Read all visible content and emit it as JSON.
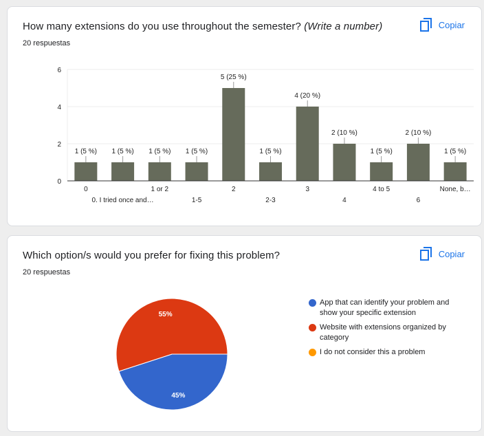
{
  "copy_label": "Copiar",
  "cards": [
    {
      "title_main": "How many extensions do you use throughout the semester?",
      "title_italic": "(Write a number)",
      "responses": "20 respuestas"
    },
    {
      "title_main": "Which option/s would you prefer for fixing this problem?",
      "responses": "20 respuestas"
    }
  ],
  "colors": {
    "bar": "#666b5b",
    "grid": "#ececec",
    "axis": "#333333",
    "link": "#1a73e8"
  },
  "chart_data": [
    {
      "type": "bar",
      "categories": [
        "0",
        "0. I tried once and…",
        "1 or 2",
        "1-5",
        "2",
        "2-3",
        "3",
        "4",
        "4 to 5",
        "6",
        "None, b…"
      ],
      "category_row": [
        "top",
        "bottom",
        "top",
        "bottom",
        "top",
        "bottom",
        "top",
        "bottom",
        "top",
        "bottom",
        "top"
      ],
      "values": [
        1,
        1,
        1,
        1,
        5,
        1,
        4,
        2,
        1,
        2,
        1
      ],
      "data_labels": [
        "1 (5 %)",
        "1 (5 %)",
        "1 (5 %)",
        "1 (5 %)",
        "5 (25 %)",
        "1 (5 %)",
        "4 (20 %)",
        "2 (10 %)",
        "1 (5 %)",
        "2 (10 %)",
        "1 (5 %)"
      ],
      "y_ticks": [
        "0",
        "2",
        "4",
        "6"
      ],
      "ylim": [
        0,
        6
      ],
      "grid": true
    },
    {
      "type": "pie",
      "slices": [
        {
          "label": "App that can identify your problem and show your specific extension",
          "value": 45,
          "pct_label": "45%",
          "color": "#3366cc"
        },
        {
          "label": "Website with extensions organized by category",
          "value": 55,
          "pct_label": "55%",
          "color": "#dc3912"
        },
        {
          "label": "I do not consider this a problem",
          "value": 0,
          "pct_label": "",
          "color": "#ff9900"
        }
      ],
      "legend_position": "right"
    }
  ]
}
